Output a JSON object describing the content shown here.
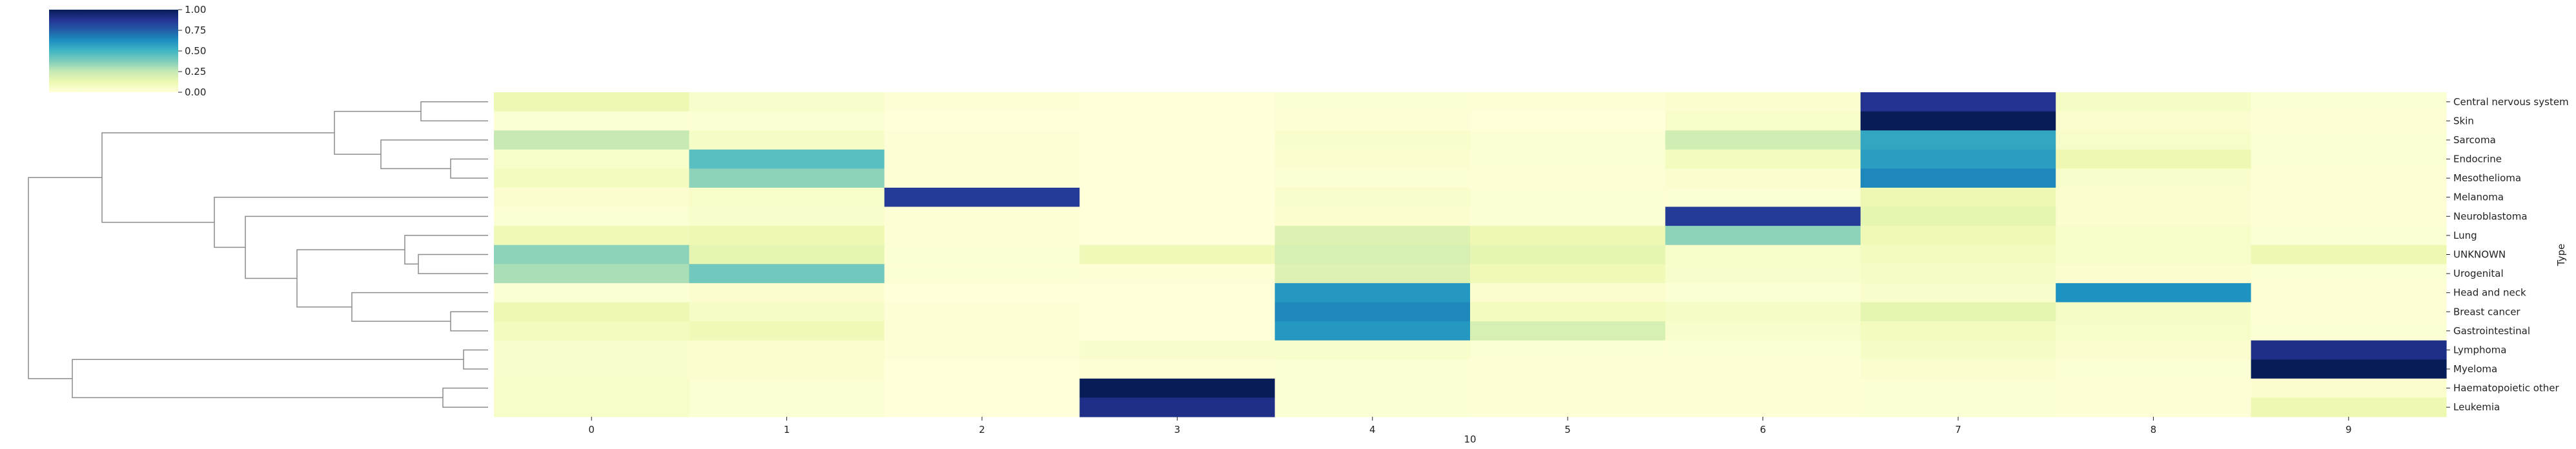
{
  "chart_data": {
    "type": "heatmap",
    "title": "",
    "xlabel": "10",
    "ylabel": "Type",
    "x_tick_labels": [
      "0",
      "1",
      "2",
      "3",
      "4",
      "5",
      "6",
      "7",
      "8",
      "9"
    ],
    "y_tick_labels": [
      "Central nervous system",
      "Skin",
      "Sarcoma",
      "Endocrine",
      "Mesothelioma",
      "Melanoma",
      "Neuroblastoma",
      "Lung",
      "UNKNOWN",
      "Urogenital",
      "Head and neck",
      "Breast cancer",
      "Gastrointestinal",
      "Lymphoma",
      "Myeloma",
      "Haematopoietic other",
      "Leukemia"
    ],
    "values": [
      [
        0.12,
        0.04,
        0.01,
        0.0,
        0.02,
        0.01,
        0.03,
        0.88,
        0.06,
        0.02
      ],
      [
        0.02,
        0.02,
        0.0,
        0.0,
        0.01,
        0.0,
        0.05,
        1.0,
        0.03,
        0.01
      ],
      [
        0.25,
        0.06,
        0.01,
        0.0,
        0.04,
        0.02,
        0.22,
        0.55,
        0.05,
        0.02
      ],
      [
        0.05,
        0.45,
        0.01,
        0.0,
        0.03,
        0.02,
        0.08,
        0.58,
        0.12,
        0.02
      ],
      [
        0.08,
        0.35,
        0.01,
        0.0,
        0.02,
        0.01,
        0.03,
        0.65,
        0.04,
        0.01
      ],
      [
        0.03,
        0.05,
        0.85,
        0.0,
        0.04,
        0.02,
        0.02,
        0.12,
        0.03,
        0.01
      ],
      [
        0.02,
        0.04,
        0.01,
        0.0,
        0.03,
        0.02,
        0.85,
        0.15,
        0.03,
        0.01
      ],
      [
        0.1,
        0.12,
        0.01,
        0.0,
        0.18,
        0.12,
        0.35,
        0.1,
        0.05,
        0.02
      ],
      [
        0.35,
        0.15,
        0.02,
        0.1,
        0.2,
        0.15,
        0.05,
        0.08,
        0.05,
        0.12
      ],
      [
        0.3,
        0.4,
        0.02,
        0.01,
        0.18,
        0.1,
        0.04,
        0.06,
        0.03,
        0.02
      ],
      [
        0.02,
        0.03,
        0.0,
        0.0,
        0.6,
        0.03,
        0.02,
        0.04,
        0.62,
        0.01
      ],
      [
        0.12,
        0.06,
        0.01,
        0.0,
        0.65,
        0.08,
        0.06,
        0.15,
        0.06,
        0.01
      ],
      [
        0.08,
        0.1,
        0.01,
        0.0,
        0.6,
        0.2,
        0.04,
        0.08,
        0.05,
        0.02
      ],
      [
        0.04,
        0.03,
        0.01,
        0.04,
        0.04,
        0.02,
        0.02,
        0.06,
        0.03,
        0.9
      ],
      [
        0.04,
        0.03,
        0.0,
        0.01,
        0.02,
        0.01,
        0.01,
        0.03,
        0.02,
        1.0
      ],
      [
        0.05,
        0.02,
        0.0,
        1.0,
        0.02,
        0.01,
        0.01,
        0.02,
        0.01,
        0.03
      ],
      [
        0.05,
        0.02,
        0.0,
        0.9,
        0.02,
        0.01,
        0.01,
        0.02,
        0.01,
        0.12
      ]
    ],
    "vmin": 0,
    "vmax": 1,
    "colormap": "YlGnBu",
    "colorbar": {
      "ticks": [
        "0.00",
        "0.25",
        "0.50",
        "0.75",
        "1.00"
      ],
      "placement": "top-left"
    },
    "row_dendrogram": true,
    "grid": false,
    "colors": {
      "dendrogram": "#8c8c8c",
      "text": "#222222",
      "cmap_stops": [
        "#ffffd9",
        "#edf8b1",
        "#c7e9b4",
        "#7fcdbb",
        "#41b6c4",
        "#1d91c0",
        "#225ea8",
        "#253494",
        "#081d58"
      ]
    }
  }
}
